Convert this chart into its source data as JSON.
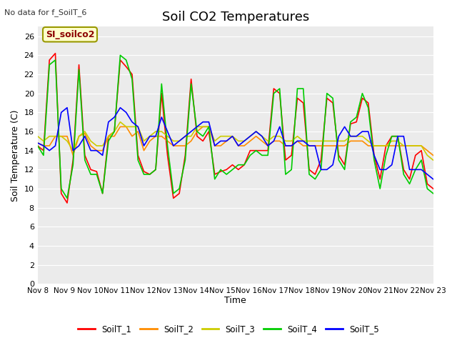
{
  "title": "Soil CO2 Temperatures",
  "subtitle": "No data for f_SoilT_6",
  "ylabel": "Soil Temperature (C)",
  "xlabel": "Time",
  "annotation_text": "SI_soilco2",
  "annotation_color": "#8B0000",
  "annotation_bg": "#FFFFCC",
  "annotation_border": "#999900",
  "ylim": [
    0,
    27
  ],
  "yticks": [
    0,
    2,
    4,
    6,
    8,
    10,
    12,
    14,
    16,
    18,
    20,
    22,
    24,
    26
  ],
  "x_labels": [
    "Nov 8",
    "Nov 9",
    "Nov 10",
    "Nov 11",
    "Nov 12",
    "Nov 13",
    "Nov 14",
    "Nov 15",
    "Nov 16",
    "Nov 17",
    "Nov 18",
    "Nov 19",
    "Nov 20",
    "Nov 21",
    "Nov 22",
    "Nov 23"
  ],
  "colors": {
    "SoilT_1": "#FF0000",
    "SoilT_2": "#FF8C00",
    "SoilT_3": "#CCCC00",
    "SoilT_4": "#00CC00",
    "SoilT_5": "#0000FF"
  },
  "fig_facecolor": "#FFFFFF",
  "plot_bg": "#EBEBEB",
  "grid_color": "#FFFFFF",
  "SoilT_1": [
    14.5,
    14.0,
    23.5,
    24.2,
    9.5,
    8.5,
    13.0,
    23.0,
    13.5,
    12.0,
    11.8,
    9.5,
    15.5,
    16.0,
    23.5,
    22.8,
    22.0,
    13.5,
    11.8,
    11.5,
    12.0,
    20.0,
    13.5,
    9.0,
    9.5,
    13.5,
    21.5,
    15.5,
    15.0,
    16.0,
    11.5,
    11.8,
    12.0,
    12.5,
    12.0,
    12.5,
    14.0,
    14.0,
    14.0,
    14.0,
    20.5,
    20.0,
    13.0,
    13.5,
    19.5,
    19.0,
    12.0,
    11.5,
    13.0,
    19.5,
    19.0,
    13.5,
    12.5,
    16.8,
    17.0,
    19.5,
    19.0,
    13.5,
    11.0,
    14.5,
    15.5,
    15.5,
    12.0,
    11.0,
    13.5,
    14.0,
    10.5,
    10.0
  ],
  "SoilT_2": [
    14.8,
    14.5,
    14.5,
    15.5,
    15.5,
    15.5,
    13.5,
    15.5,
    15.8,
    14.5,
    14.0,
    14.0,
    15.5,
    15.5,
    16.5,
    16.5,
    15.5,
    16.0,
    14.0,
    15.0,
    15.5,
    15.5,
    15.0,
    14.5,
    14.5,
    14.5,
    15.0,
    16.0,
    16.5,
    16.5,
    14.5,
    14.5,
    15.0,
    15.5,
    14.5,
    14.5,
    15.0,
    15.5,
    15.0,
    14.5,
    15.0,
    15.0,
    14.5,
    14.5,
    15.0,
    14.5,
    14.5,
    14.5,
    14.5,
    14.5,
    14.5,
    14.5,
    14.5,
    15.0,
    15.0,
    15.0,
    14.5,
    14.5,
    14.5,
    14.5,
    14.5,
    14.5,
    14.5,
    14.5,
    14.5,
    14.5,
    14.0,
    13.5
  ],
  "SoilT_3": [
    15.5,
    15.0,
    15.5,
    15.5,
    15.5,
    15.0,
    14.0,
    15.5,
    16.0,
    15.0,
    14.5,
    14.5,
    15.5,
    16.0,
    17.0,
    16.5,
    16.5,
    16.5,
    15.0,
    15.5,
    16.0,
    16.0,
    15.5,
    15.0,
    15.0,
    15.5,
    15.5,
    16.5,
    16.5,
    16.5,
    15.0,
    15.5,
    15.5,
    15.5,
    15.0,
    15.0,
    15.5,
    16.0,
    15.5,
    15.0,
    15.5,
    15.5,
    15.0,
    15.0,
    15.5,
    15.0,
    15.0,
    15.0,
    15.0,
    15.0,
    15.0,
    15.0,
    15.0,
    15.5,
    15.5,
    15.5,
    15.0,
    14.5,
    14.5,
    14.5,
    15.0,
    15.0,
    14.5,
    14.5,
    14.5,
    14.5,
    13.5,
    13.0
  ],
  "SoilT_4": [
    14.5,
    13.5,
    23.0,
    23.5,
    10.0,
    9.0,
    12.5,
    22.5,
    13.0,
    11.5,
    11.5,
    9.5,
    15.0,
    16.0,
    24.0,
    23.5,
    21.5,
    13.0,
    11.5,
    11.5,
    12.0,
    21.0,
    14.5,
    9.5,
    10.0,
    13.0,
    21.0,
    16.0,
    15.5,
    16.5,
    11.0,
    12.0,
    11.5,
    12.0,
    12.5,
    12.5,
    13.5,
    14.0,
    13.5,
    13.5,
    20.0,
    20.5,
    11.5,
    12.0,
    20.5,
    20.5,
    11.5,
    11.0,
    12.0,
    20.0,
    19.5,
    13.0,
    12.0,
    17.0,
    17.5,
    20.0,
    18.5,
    13.0,
    10.0,
    13.5,
    15.5,
    15.5,
    11.5,
    10.5,
    12.0,
    13.0,
    10.0,
    9.5
  ],
  "SoilT_5": [
    14.8,
    14.5,
    14.0,
    14.5,
    18.0,
    18.5,
    14.0,
    14.5,
    15.5,
    14.0,
    14.0,
    13.5,
    17.0,
    17.5,
    18.5,
    18.0,
    17.0,
    16.5,
    14.5,
    15.5,
    15.5,
    17.5,
    16.0,
    14.5,
    15.0,
    15.5,
    16.0,
    16.5,
    17.0,
    17.0,
    14.5,
    15.0,
    15.0,
    15.5,
    14.5,
    15.0,
    15.5,
    16.0,
    15.5,
    14.5,
    15.0,
    16.5,
    14.5,
    14.5,
    15.0,
    15.0,
    14.5,
    14.5,
    12.0,
    12.0,
    12.5,
    15.5,
    16.5,
    15.5,
    15.5,
    16.0,
    16.0,
    13.5,
    12.0,
    12.0,
    12.5,
    15.5,
    15.5,
    12.0,
    12.0,
    12.0,
    11.5,
    11.0
  ]
}
